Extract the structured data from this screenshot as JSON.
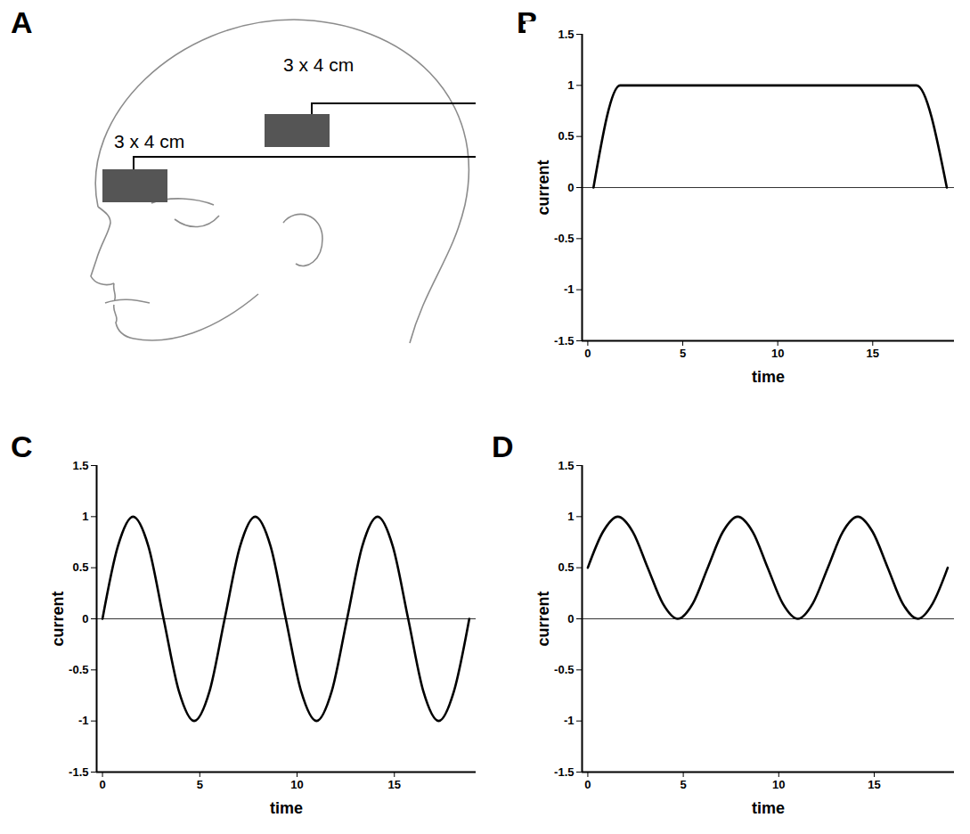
{
  "panel_letters": [
    "A",
    "B",
    "C",
    "D"
  ],
  "diagram": {
    "electrodes": [
      {
        "label": "3 x 4 cm"
      },
      {
        "label": "3 x 4 cm"
      }
    ]
  },
  "chart_data": [
    {
      "type": "line",
      "x_label": "time",
      "y_label": "current",
      "x": [
        0.3,
        1.7,
        17.3,
        18.9
      ],
      "values": [
        0,
        1,
        1,
        0
      ],
      "color": "#000000",
      "xlim": [
        -0.3,
        19.3
      ],
      "xticks": [
        0,
        5,
        10,
        15
      ],
      "ylim": [
        -1.5,
        1.5
      ],
      "yticks": [
        -1.5,
        -1,
        -0.5,
        0,
        0.5,
        1,
        1.5
      ]
    },
    {
      "type": "line",
      "x_label": "time",
      "y_label": "current",
      "x": [
        0,
        0.79,
        1.57,
        2.36,
        3.14,
        3.93,
        4.71,
        5.5,
        6.28,
        7.07,
        7.85,
        8.64,
        9.42,
        10.21,
        11,
        11.78,
        12.57,
        13.35,
        14.14,
        14.92,
        15.71,
        16.49,
        17.28,
        18.06,
        18.85
      ],
      "values": [
        0,
        0.71,
        1,
        0.71,
        0,
        -0.71,
        -1,
        -0.71,
        0,
        0.71,
        1,
        0.71,
        0,
        -0.71,
        -1,
        -0.71,
        0,
        0.71,
        1,
        0.71,
        0,
        -0.71,
        -1,
        -0.71,
        0
      ],
      "color": "#000000",
      "xlim": [
        -0.3,
        19.2
      ],
      "xticks": [
        0,
        5,
        10,
        15
      ],
      "ylim": [
        -1.5,
        1.5
      ],
      "yticks": [
        -1.5,
        -1,
        -0.5,
        0,
        0.5,
        1,
        1.5
      ]
    },
    {
      "type": "line",
      "x_label": "time",
      "y_label": "current",
      "x": [
        0,
        0.79,
        1.57,
        2.36,
        3.14,
        3.93,
        4.71,
        5.5,
        6.28,
        7.07,
        7.85,
        8.64,
        9.42,
        10.21,
        11,
        11.78,
        12.57,
        13.35,
        14.14,
        14.92,
        15.71,
        16.49,
        17.28,
        18.06,
        18.85
      ],
      "values": [
        0.5,
        0.85,
        1,
        0.85,
        0.5,
        0.15,
        0,
        0.15,
        0.5,
        0.85,
        1,
        0.85,
        0.5,
        0.15,
        0,
        0.15,
        0.5,
        0.85,
        1,
        0.85,
        0.5,
        0.15,
        0,
        0.15,
        0.5
      ],
      "color": "#000000",
      "xlim": [
        -0.3,
        19.2
      ],
      "xticks": [
        0,
        5,
        10,
        15
      ],
      "ylim": [
        -1.5,
        1.5
      ],
      "yticks": [
        -1.5,
        -1,
        -0.5,
        0,
        0.5,
        1,
        1.5
      ]
    }
  ]
}
